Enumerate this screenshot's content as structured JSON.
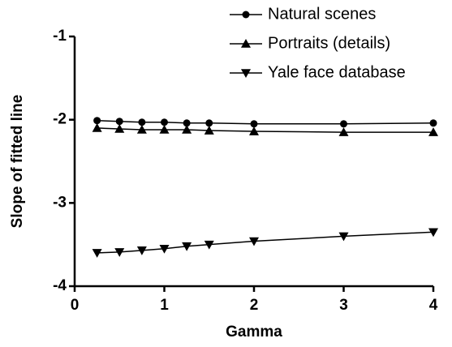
{
  "chart_data": {
    "type": "line",
    "x_label": "Gamma",
    "y_label": "Slope of fitted line",
    "x": [
      0.25,
      0.5,
      0.75,
      1,
      1.25,
      1.5,
      2,
      3,
      4
    ],
    "series": [
      {
        "name": "Natural scenes",
        "color": "#000000",
        "marker": "circle",
        "values": [
          -2.01,
          -2.02,
          -2.03,
          -2.03,
          -2.04,
          -2.04,
          -2.05,
          -2.05,
          -2.04
        ]
      },
      {
        "name": "Portraits (details)",
        "color": "#000000",
        "marker": "triangle-up",
        "values": [
          -2.1,
          -2.11,
          -2.12,
          -2.12,
          -2.12,
          -2.13,
          -2.14,
          -2.15,
          -2.15
        ]
      },
      {
        "name": "Yale face database",
        "color": "#000000",
        "marker": "triangle-down",
        "values": [
          -3.6,
          -3.59,
          -3.57,
          -3.55,
          -3.52,
          -3.5,
          -3.46,
          -3.4,
          -3.35
        ]
      }
    ],
    "xlim": [
      0,
      4
    ],
    "xticks": [
      0,
      1,
      2,
      3,
      4
    ],
    "ylim": [
      -4,
      -1
    ],
    "yticks": [
      -4,
      -3,
      -2,
      -1
    ]
  }
}
